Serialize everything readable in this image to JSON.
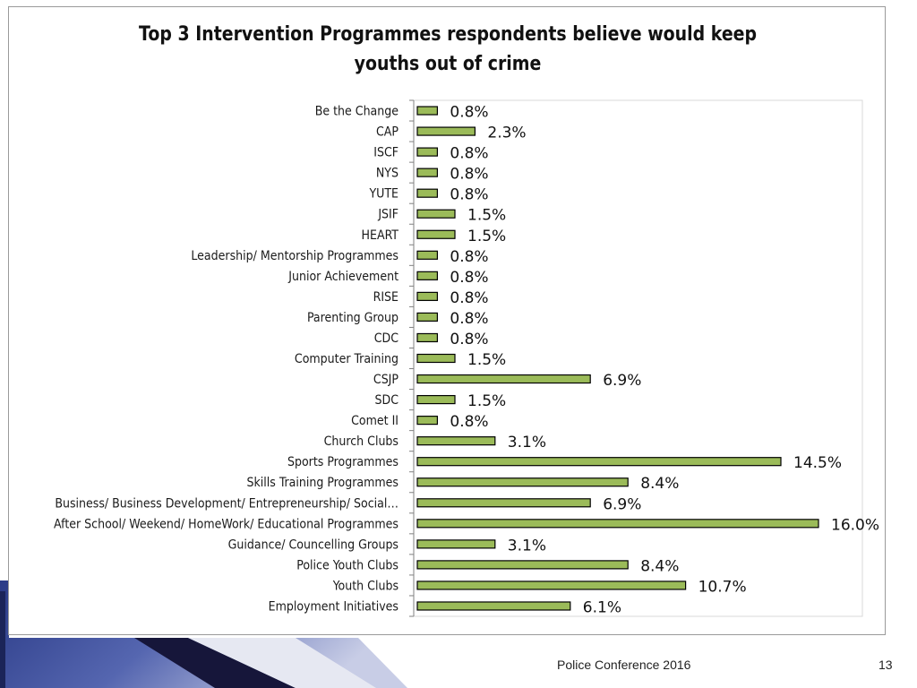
{
  "footer": {
    "text": "Police Conference 2016",
    "page_number": "13"
  },
  "colors": {
    "bar_fill": "#9bbb59",
    "bar_stroke": "#000000",
    "frame": "#9a9a9a",
    "deco_dark": "#16163a",
    "deco_blue": "#3d4f9f"
  },
  "chart_data": {
    "type": "bar",
    "orientation": "horizontal",
    "title": "Top 3 Intervention Programmes respondents believe would keep youths out of crime",
    "title_lines": [
      "Top 3 Intervention Programmes respondents believe would keep",
      "youths out of crime"
    ],
    "xlabel": "",
    "ylabel": "",
    "xlim": [
      0,
      16.0
    ],
    "grid": false,
    "legend": "none",
    "categories": [
      "Be the Change",
      "CAP",
      "ISCF",
      "NYS",
      "YUTE",
      "JSIF",
      "HEART",
      "Leadership/ Mentorship Programmes",
      "Junior Achievement",
      "RISE",
      "Parenting Group",
      "CDC",
      "Computer Training",
      "CSJP",
      "SDC",
      "Comet II",
      "Church Clubs",
      "Sports Programmes",
      "Skills Training Programmes",
      "Business/ Business Development/ Entrepreneurship/ Social…",
      "After School/ Weekend/ HomeWork/ Educational Programmes",
      "Guidance/ Councelling Groups",
      "Police Youth Clubs",
      "Youth Clubs",
      "Employment Initiatives"
    ],
    "values": [
      0.8,
      2.3,
      0.8,
      0.8,
      0.8,
      1.5,
      1.5,
      0.8,
      0.8,
      0.8,
      0.8,
      0.8,
      1.5,
      6.9,
      1.5,
      0.8,
      3.1,
      14.5,
      8.4,
      6.9,
      16.0,
      3.1,
      8.4,
      10.7,
      6.1
    ],
    "data_labels": [
      "0.8%",
      "2.3%",
      "0.8%",
      "0.8%",
      "0.8%",
      "1.5%",
      "1.5%",
      "0.8%",
      "0.8%",
      "0.8%",
      "0.8%",
      "0.8%",
      "1.5%",
      "6.9%",
      "1.5%",
      "0.8%",
      "3.1%",
      "14.5%",
      "8.4%",
      "6.9%",
      "16.0%",
      "3.1%",
      "8.4%",
      "10.7%",
      "6.1%"
    ]
  }
}
